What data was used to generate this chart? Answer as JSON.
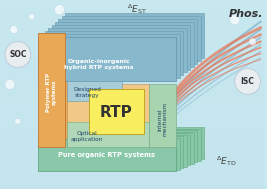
{
  "bg_color_top": "#c8e8f0",
  "bg_color_bot": "#a8d0e0",
  "orange_color": "#e8a855",
  "orange_light": "#f5c878",
  "blue_stack": "#88b8cc",
  "blue_stack_dark": "#6898b0",
  "teal_color": "#88c8a8",
  "teal_light": "#a8d8b8",
  "teal_dotted": "#90c8a8",
  "yellow_color": "#f8ee60",
  "inner_orange": "#f0c888",
  "inner_blue": "#a8ccd8",
  "circle_color": "#e8eef0",
  "circle_edge": "#c0ccd8",
  "red_line": "#e87858",
  "blue_line": "#88b8d0",
  "text_dark": "#333333",
  "text_white": "#ffffff",
  "soc_label": "SOC",
  "isc_label": "ISC",
  "phos_label": "Phos.",
  "rtp_label": "RTP",
  "polymer_label": "Polymer RTP\nsystems",
  "pure_organic_label": "Pure organic RTP systems",
  "hybrid_label": "Organic-inorganic\nhybrid RTP systems",
  "designed_label": "Designed\nstrategy",
  "internal_label": "Internal\nmechanism",
  "optical_label": "Optical\napplication"
}
